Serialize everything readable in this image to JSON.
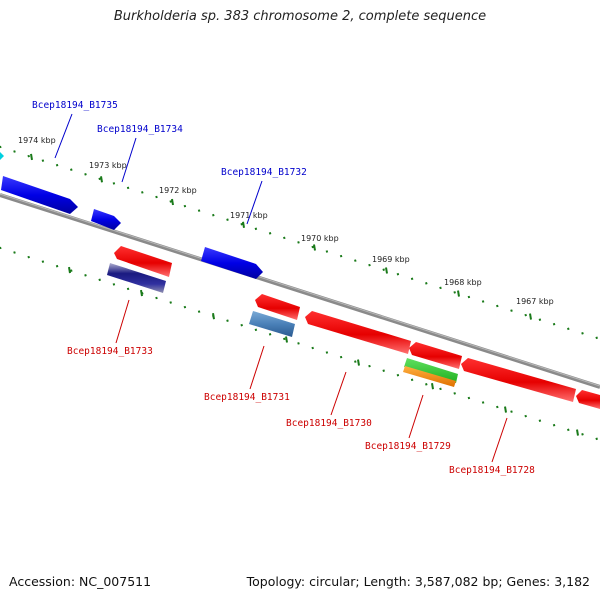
{
  "title": "Burkholderia sp. 383 chromosome 2, complete sequence",
  "footer": {
    "accession": "Accession: NC_007511",
    "summary": "Topology: circular; Length: 3,587,082 bp; Genes: 3,182"
  },
  "colors": {
    "forward_gene": "#0000ee",
    "reverse_gene": "#ee0000",
    "tick": "#1a7a1a",
    "backbone": "#888888",
    "forward_label": "#0000cc",
    "reverse_label": "#cc0000"
  },
  "scale_labels": [
    "1974 kbp",
    "1973 kbp",
    "1972 kbp",
    "1971 kbp",
    "1970 kbp",
    "1969 kbp",
    "1968 kbp",
    "1967 kbp"
  ],
  "forward_genes": [
    "Bcep18194_B1735",
    "Bcep18194_B1734",
    "Bcep18194_B1732"
  ],
  "reverse_genes": [
    "Bcep18194_B1733",
    "Bcep18194_B1731",
    "Bcep18194_B1730",
    "Bcep18194_B1729",
    "Bcep18194_B1728"
  ]
}
